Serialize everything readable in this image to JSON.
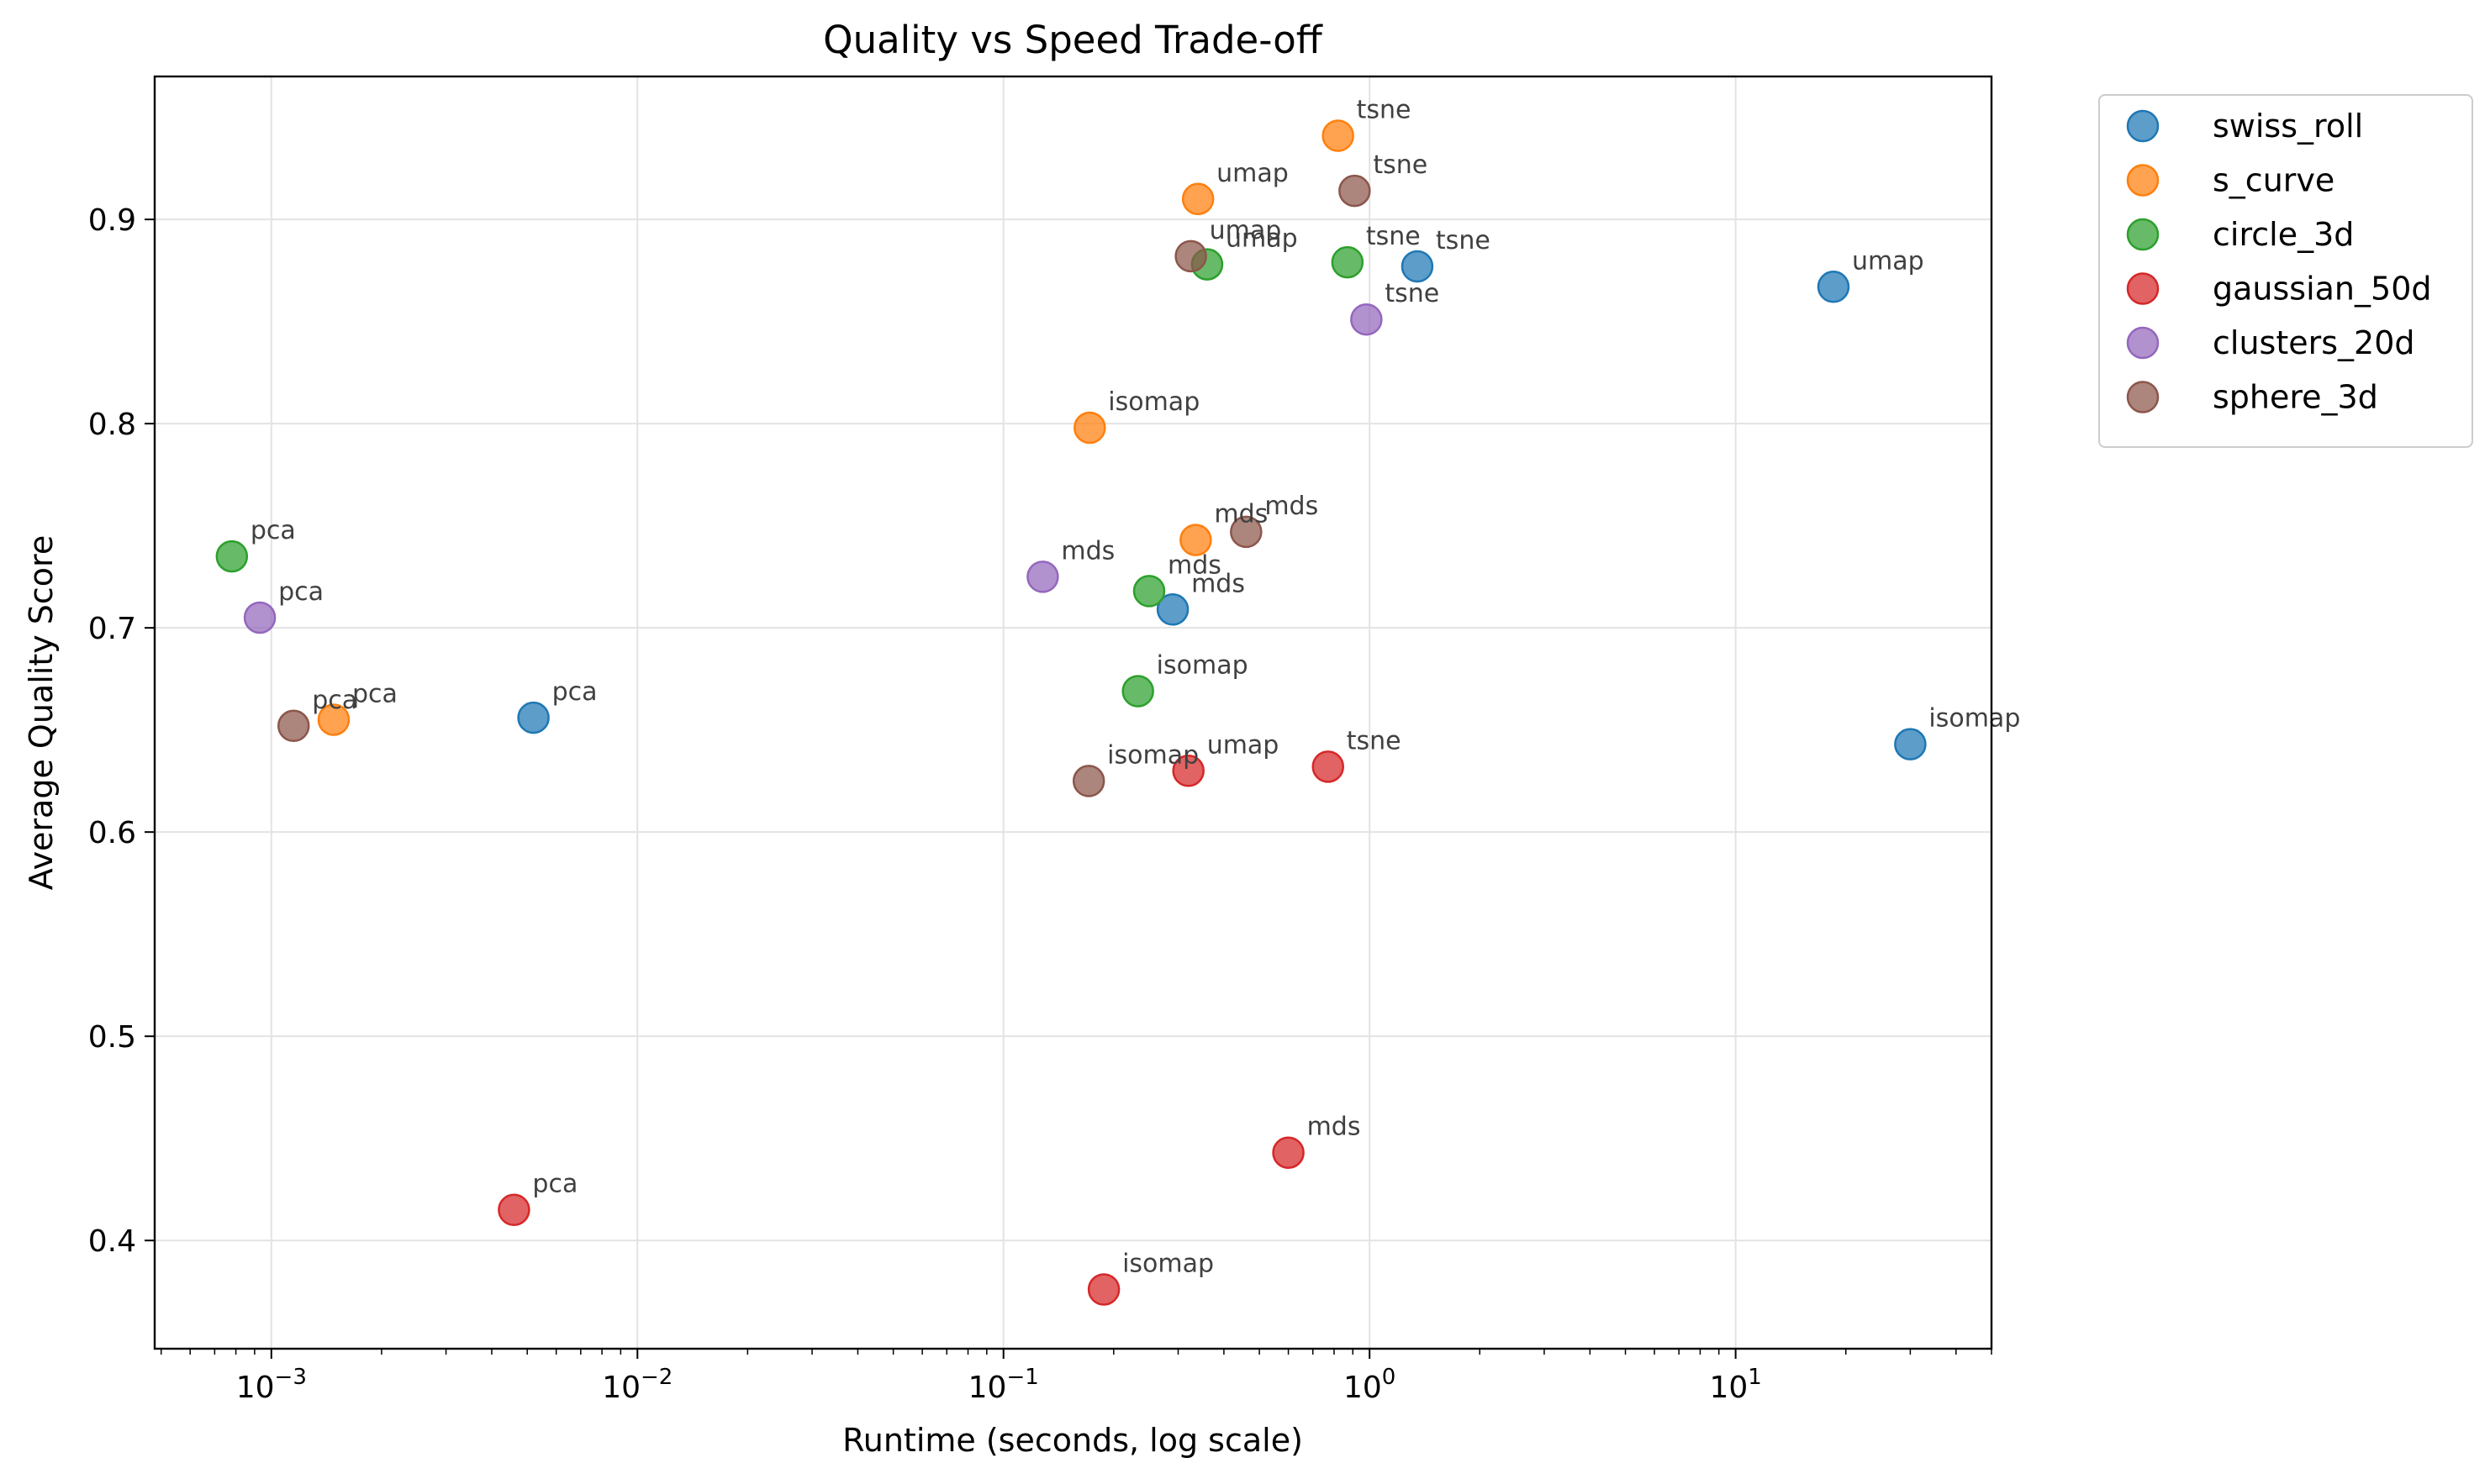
{
  "chart_data": {
    "type": "scatter",
    "title": "Quality vs Speed Trade-off",
    "xlabel": "Runtime (seconds, log scale)",
    "ylabel": "Average Quality Score",
    "xscale": "log",
    "xlim": [
      0.00048,
      50
    ],
    "ylim": [
      0.347,
      0.97
    ],
    "x_ticks": [
      {
        "value": 0.001,
        "base": "10",
        "exp": "−3"
      },
      {
        "value": 0.01,
        "base": "10",
        "exp": "−2"
      },
      {
        "value": 0.1,
        "base": "10",
        "exp": "−1"
      },
      {
        "value": 1,
        "base": "10",
        "exp": "0"
      },
      {
        "value": 10,
        "base": "10",
        "exp": "1"
      }
    ],
    "y_ticks": [
      {
        "value": 0.4,
        "label": "0.4"
      },
      {
        "value": 0.5,
        "label": "0.5"
      },
      {
        "value": 0.6,
        "label": "0.6"
      },
      {
        "value": 0.7,
        "label": "0.7"
      },
      {
        "value": 0.8,
        "label": "0.8"
      },
      {
        "value": 0.9,
        "label": "0.9"
      }
    ],
    "grid": true,
    "legend_position": "outside upper right",
    "series": [
      {
        "name": "swiss_roll",
        "color": "#1f77b4",
        "points": [
          {
            "x": 0.0052,
            "y": 0.656,
            "label": "pca"
          },
          {
            "x": 0.29,
            "y": 0.709,
            "label": "mds"
          },
          {
            "x": 1.35,
            "y": 0.877,
            "label": "tsne"
          },
          {
            "x": 18.5,
            "y": 0.867,
            "label": "umap"
          },
          {
            "x": 30.0,
            "y": 0.643,
            "label": "isomap"
          }
        ]
      },
      {
        "name": "s_curve",
        "color": "#ff7f0e",
        "points": [
          {
            "x": 0.00148,
            "y": 0.655,
            "label": "pca"
          },
          {
            "x": 0.172,
            "y": 0.798,
            "label": "isomap"
          },
          {
            "x": 0.335,
            "y": 0.743,
            "label": "mds"
          },
          {
            "x": 0.34,
            "y": 0.91,
            "label": "umap"
          },
          {
            "x": 0.82,
            "y": 0.941,
            "label": "tsne"
          }
        ]
      },
      {
        "name": "circle_3d",
        "color": "#2ca02c",
        "points": [
          {
            "x": 0.00078,
            "y": 0.735,
            "label": "pca"
          },
          {
            "x": 0.233,
            "y": 0.669,
            "label": "isomap"
          },
          {
            "x": 0.25,
            "y": 0.718,
            "label": "mds"
          },
          {
            "x": 0.36,
            "y": 0.878,
            "label": "umap"
          },
          {
            "x": 0.87,
            "y": 0.879,
            "label": "tsne"
          }
        ]
      },
      {
        "name": "gaussian_50d",
        "color": "#d62728",
        "points": [
          {
            "x": 0.0046,
            "y": 0.415,
            "label": "pca"
          },
          {
            "x": 0.188,
            "y": 0.376,
            "label": "isomap"
          },
          {
            "x": 0.32,
            "y": 0.63,
            "label": "umap"
          },
          {
            "x": 0.6,
            "y": 0.443,
            "label": "mds"
          },
          {
            "x": 0.77,
            "y": 0.632,
            "label": "tsne"
          }
        ]
      },
      {
        "name": "clusters_20d",
        "color": "#9467bd",
        "points": [
          {
            "x": 0.00093,
            "y": 0.705,
            "label": "pca"
          },
          {
            "x": 0.128,
            "y": 0.725,
            "label": "mds"
          },
          {
            "x": 0.98,
            "y": 0.851,
            "label": "tsne"
          }
        ]
      },
      {
        "name": "sphere_3d",
        "color": "#8c564b",
        "points": [
          {
            "x": 0.00115,
            "y": 0.652,
            "label": "pca"
          },
          {
            "x": 0.171,
            "y": 0.625,
            "label": "isomap"
          },
          {
            "x": 0.325,
            "y": 0.882,
            "label": "umap"
          },
          {
            "x": 0.46,
            "y": 0.747,
            "label": "mds"
          },
          {
            "x": 0.91,
            "y": 0.914,
            "label": "tsne"
          }
        ]
      }
    ]
  }
}
